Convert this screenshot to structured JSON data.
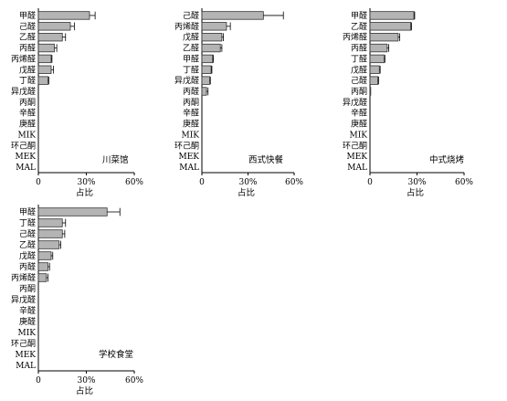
{
  "chart_data": [
    {
      "type": "bar",
      "orientation": "horizontal",
      "panel_label": "川菜馆",
      "xlabel": "占比",
      "xlim": [
        0,
        60
      ],
      "xticks": [
        "0",
        "30%",
        "60%"
      ],
      "error_bars": true,
      "grid": false,
      "categories": [
        "甲醛",
        "己醛",
        "乙醛",
        "丙醛",
        "丙烯醛",
        "戊醛",
        "丁醛",
        "异戊醛",
        "丙酮",
        "辛醛",
        "庚醛",
        "MIK",
        "环己酮",
        "MEK",
        "MAL"
      ],
      "values": [
        32,
        20,
        15,
        10,
        8,
        8,
        6,
        0,
        0,
        0,
        0,
        0,
        0,
        0,
        0
      ],
      "errors": [
        3.5,
        2.5,
        2,
        1.5,
        0.5,
        1.5,
        0.5,
        0,
        0,
        0,
        0,
        0,
        0,
        0,
        0
      ]
    },
    {
      "type": "bar",
      "orientation": "horizontal",
      "panel_label": "西式快餐",
      "xlabel": "占比",
      "xlim": [
        0,
        60
      ],
      "xticks": [
        "0",
        "30%",
        "60%"
      ],
      "error_bars": true,
      "grid": false,
      "categories": [
        "己醛",
        "丙烯醛",
        "戊醛",
        "乙醛",
        "甲醛",
        "丁醛",
        "异戊醛",
        "丙醛",
        "丙酮",
        "辛醛",
        "庚醛",
        "MIK",
        "环己酮",
        "MEK",
        "MAL"
      ],
      "values": [
        40,
        16,
        13,
        12,
        7,
        6,
        5,
        3,
        0,
        0,
        0,
        0,
        0,
        0,
        0
      ],
      "errors": [
        13,
        2.5,
        1,
        1,
        0.5,
        0.5,
        0.5,
        1,
        0,
        0,
        0,
        0,
        0,
        0,
        0
      ]
    },
    {
      "type": "bar",
      "orientation": "horizontal",
      "panel_label": "中式烧烤",
      "xlabel": "占比",
      "xlim": [
        0,
        60
      ],
      "xticks": [
        "0",
        "30%",
        "60%"
      ],
      "error_bars": true,
      "grid": false,
      "categories": [
        "甲醛",
        "乙醛",
        "丙烯醛",
        "丙醛",
        "丁醛",
        "戊醛",
        "己醛",
        "丙酮",
        "异戊醛",
        "辛醛",
        "庚醛",
        "MIK",
        "环己酮",
        "MEK",
        "MAL"
      ],
      "values": [
        28,
        26,
        18,
        11,
        9,
        6,
        5,
        0.5,
        0,
        0,
        0,
        0,
        0,
        0,
        0
      ],
      "errors": [
        0.5,
        0.5,
        1,
        1,
        0.5,
        0.5,
        0.5,
        0,
        0,
        0,
        0,
        0,
        0,
        0,
        0
      ]
    },
    {
      "type": "bar",
      "orientation": "horizontal",
      "panel_label": "学校食堂",
      "xlabel": "占比",
      "xlim": [
        0,
        60
      ],
      "xticks": [
        "0",
        "30%",
        "60%"
      ],
      "error_bars": true,
      "grid": false,
      "categories": [
        "甲醛",
        "丁醛",
        "己醛",
        "乙醛",
        "戊醛",
        "丙醛",
        "丙烯醛",
        "丙酮",
        "异戊醛",
        "辛醛",
        "庚醛",
        "MIK",
        "环己酮",
        "MEK",
        "MAL"
      ],
      "values": [
        43,
        15,
        15,
        13,
        8,
        6,
        5,
        0,
        0,
        0,
        0,
        0,
        0,
        0,
        0
      ],
      "errors": [
        8,
        2,
        1.5,
        1,
        1,
        1,
        1,
        0,
        0,
        0,
        0,
        0,
        0,
        0,
        0
      ]
    }
  ],
  "colors": {
    "bar_fill": "#b4b4b4",
    "bar_stroke": "#333333",
    "axis": "#000000"
  }
}
